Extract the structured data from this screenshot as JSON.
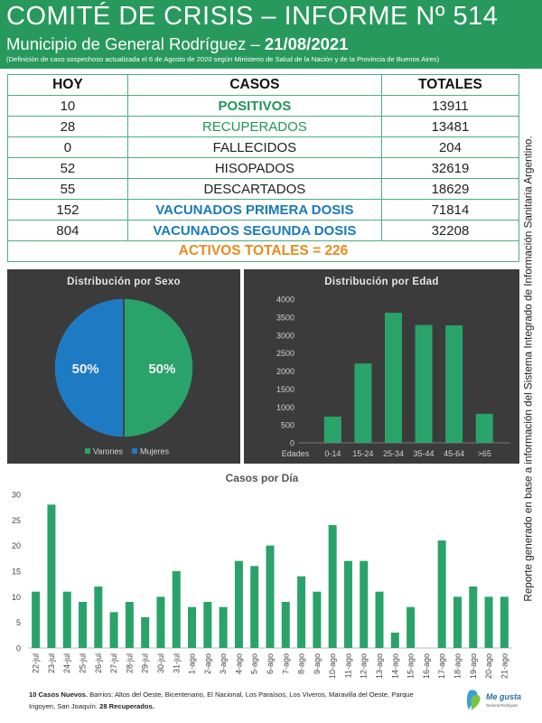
{
  "header": {
    "title": "COMITÉ DE CRISIS – INFORME Nº 514",
    "subtitle": "Municipio de General Rodríguez –",
    "date": "21/08/2021",
    "note": "(Definición de caso sospechoso actualizada el 6 de Agosto de 2020 según Ministerio de Salud de la Nación y de la Provincia de Buenos Aires)"
  },
  "table": {
    "headers": [
      "HOY",
      "CASOS",
      "TOTALES"
    ],
    "rows": [
      {
        "hoy": "10",
        "casos": "POSITIVOS",
        "totales": "13911"
      },
      {
        "hoy": "28",
        "casos": "RECUPERADOS",
        "totales": "13481"
      },
      {
        "hoy": "0",
        "casos": "FALLECIDOS",
        "totales": "204"
      },
      {
        "hoy": "52",
        "casos": "HISOPADOS",
        "totales": "32619"
      },
      {
        "hoy": "55",
        "casos": "DESCARTADOS",
        "totales": "18629"
      },
      {
        "hoy": "152",
        "casos": "VACUNADOS PRIMERA DOSIS",
        "totales": "71814"
      },
      {
        "hoy": "804",
        "casos": "VACUNADOS SEGUNDA DOSIS",
        "totales": "32208"
      }
    ],
    "activos": "ACTIVOS TOTALES = 226"
  },
  "colors": {
    "green": "#2aa36a",
    "blue": "#1f7ac4",
    "panel": "#3b3b3b",
    "header": "#27995c",
    "orange": "#e88b1f"
  },
  "side_text": "Reporte generado en base a información del Sistema Integrado de Información Sanitaria Argentino.",
  "bottom_note": {
    "bold1": "10 Casos Nuevos.",
    "text": " Barrios: Altos del Oeste, Bicentenario, El Nacional, Los Paraísos, Los Viveros, Maravilla del Oeste, Parque Irigoyen, San Joaquín. ",
    "bold2": "28 Recuperados."
  },
  "logo": {
    "line1": "Me gusta",
    "line2": "General Rodríguez"
  },
  "chart_data": [
    {
      "type": "pie",
      "title": "Distribución  por Sexo",
      "labels": [
        "Varones",
        "Mujeres"
      ],
      "values": [
        50,
        50
      ],
      "display": [
        "50%",
        "50%"
      ],
      "colors": [
        "#2aa36a",
        "#1f7ac4"
      ],
      "legend": "bottom"
    },
    {
      "type": "bar",
      "title": "Distribución  por Edad",
      "xlabel": "Edades",
      "categories": [
        "0-14",
        "15-24",
        "25-34",
        "35-44",
        "45-64",
        ">65"
      ],
      "values": [
        730,
        2210,
        3620,
        3280,
        3270,
        810
      ],
      "ylim": [
        0,
        4000
      ],
      "yticks": [
        0,
        500,
        1000,
        1500,
        2000,
        2500,
        3000,
        3500,
        4000
      ],
      "color": "#2aa36a"
    },
    {
      "type": "bar",
      "title": "Casos por Día",
      "categories": [
        "22-jul",
        "23-jul",
        "24-jul",
        "25-jul",
        "26-jul",
        "27-jul",
        "28-jul",
        "29-jul",
        "30-jul",
        "31-jul",
        "1-ago",
        "2-ago",
        "3-ago",
        "4-ago",
        "5-ago",
        "6-ago",
        "7-ago",
        "8-ago",
        "9-ago",
        "10-ago",
        "11-ago",
        "12-ago",
        "13-ago",
        "14-ago",
        "15-ago",
        "16-ago",
        "17-ago",
        "18-ago",
        "19-ago",
        "20-ago",
        "21-ago"
      ],
      "values": [
        11,
        28,
        11,
        9,
        12,
        7,
        9,
        6,
        10,
        15,
        8,
        9,
        8,
        17,
        16,
        20,
        9,
        14,
        11,
        24,
        17,
        17,
        11,
        3,
        8,
        0,
        21,
        10,
        12,
        10,
        10
      ],
      "ylim": [
        0,
        30
      ],
      "yticks": [
        0,
        5,
        10,
        15,
        20,
        25,
        30
      ],
      "color": "#2aa36a"
    }
  ]
}
